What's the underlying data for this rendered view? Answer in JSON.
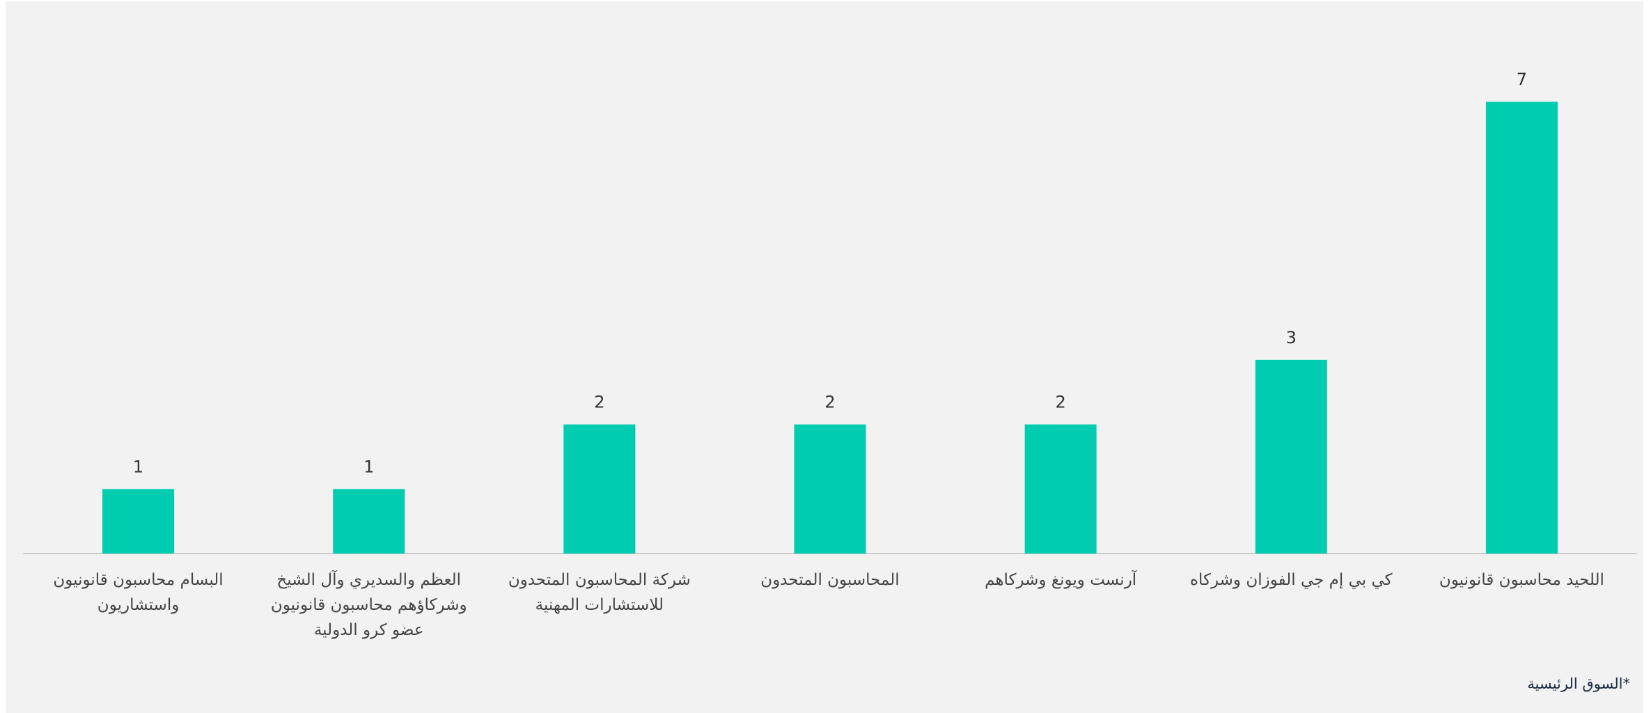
{
  "chart_data": {
    "type": "bar",
    "categories": [
      "البسام محاسبون قانونيون\nواستشاريون",
      "العظم والسديري وآل الشيخ\nوشركاؤهم محاسبون قانونيون\nعضو كرو الدولية",
      "شركة المحاسبون المتحدون\nللاستشارات المهنية",
      "المحاسبون المتحدون",
      "آرنست ويونغ وشركاهم",
      "كي بي إم جي الفوزان وشركاه",
      "اللحيد محاسبون قانونيون"
    ],
    "values": [
      1,
      1,
      2,
      2,
      2,
      3,
      7
    ],
    "color": "#00cdb0",
    "ylim": [
      0,
      7
    ],
    "footnote": "*السوق الرئيسية"
  }
}
